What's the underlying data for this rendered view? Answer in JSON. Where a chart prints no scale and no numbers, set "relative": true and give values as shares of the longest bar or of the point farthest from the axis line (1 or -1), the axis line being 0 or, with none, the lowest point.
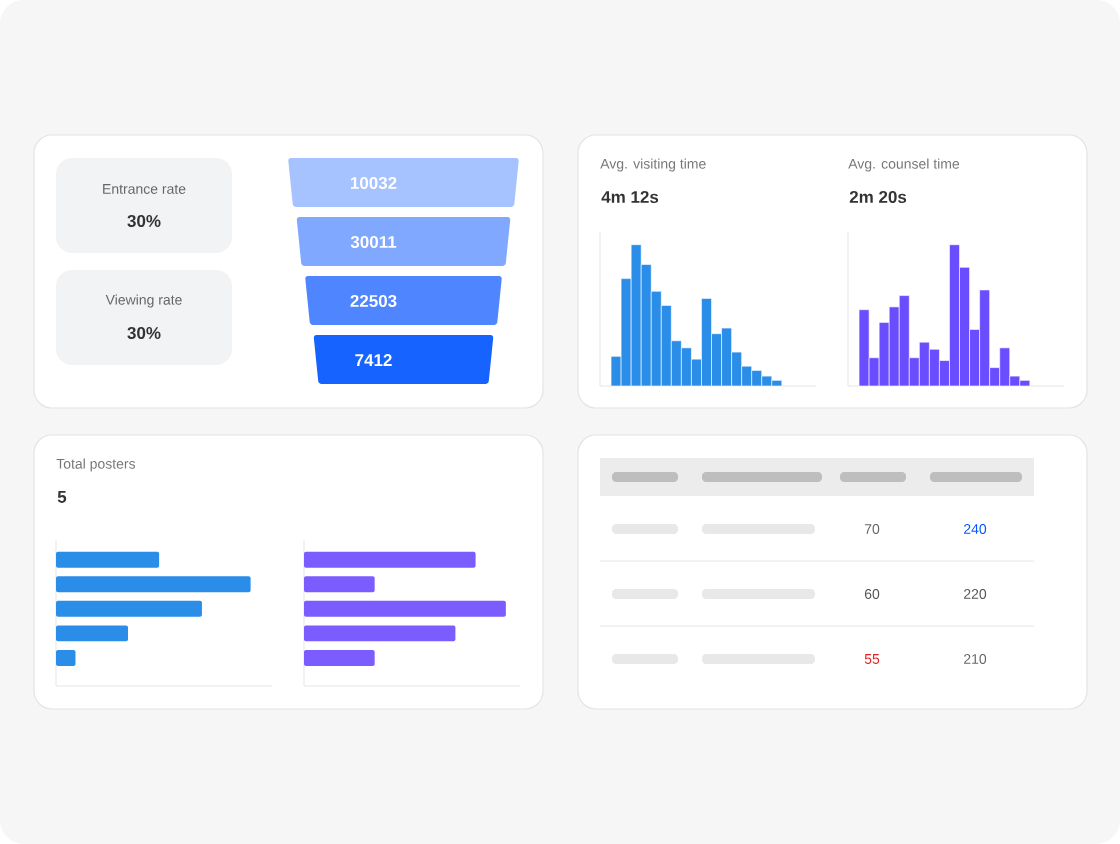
{
  "chart_data": [
    {
      "type": "other",
      "annotations": [
        "Entrance rate",
        "30%",
        "Viewing rate",
        "30%"
      ]
    },
    {
      "type": "other",
      "categories": [
        null,
        null,
        null,
        null
      ],
      "values": [
        10032,
        30011,
        22503,
        7412
      ],
      "colors": [
        "#a6c2ff",
        "#80a8ff",
        "#4f86ff",
        "#1763ff"
      ],
      "data_labels": true
    },
    {
      "type": "bar",
      "title": "Avg. visiting time",
      "subtitle": "4m 12s",
      "categories": [
        null,
        null,
        null,
        null,
        null,
        null,
        null,
        null,
        null,
        null,
        null,
        null,
        null,
        null,
        null,
        null,
        null
      ],
      "values": [
        0.21,
        0.76,
        1,
        0.86,
        0.67,
        0.57,
        0.32,
        0.27,
        0.19,
        0.62,
        0.37,
        0.41,
        0.24,
        0.14,
        0.11,
        0.07,
        0.04
      ],
      "color": "#2a8de8",
      "relative": true
    },
    {
      "type": "bar",
      "title": "Avg. counsel time",
      "subtitle": "2m 20s",
      "categories": [
        null,
        null,
        null,
        null,
        null,
        null,
        null,
        null,
        null,
        null,
        null,
        null,
        null,
        null,
        null,
        null,
        null
      ],
      "values": [
        0.54,
        0.2,
        0.45,
        0.56,
        0.64,
        0.2,
        0.31,
        0.26,
        0.18,
        1,
        0.84,
        0.4,
        0.68,
        0.13,
        0.27,
        0.07,
        0.04
      ],
      "color": "#6a4dff",
      "relative": true
    },
    {
      "type": "bar",
      "title": "Total posters",
      "subtitle": "5",
      "orientation": "horizontal",
      "categories": [
        null,
        null,
        null,
        null,
        null
      ],
      "values": [
        0.53,
        1,
        0.75,
        0.37,
        0.1
      ],
      "color": "#2a8de8",
      "relative": true
    },
    {
      "type": "bar",
      "orientation": "horizontal",
      "categories": [
        null,
        null,
        null,
        null,
        null
      ],
      "values": [
        0.85,
        0.35,
        1,
        0.75,
        0.35
      ],
      "color": "#7a5cff",
      "relative": true
    },
    {
      "type": "other",
      "annotations": [
        "70",
        "240",
        "60",
        "220",
        "55",
        "210"
      ],
      "colors": [
        "#666666",
        "#0055ff",
        "#555555",
        "#555555",
        "#e02020",
        "#666666"
      ]
    }
  ]
}
